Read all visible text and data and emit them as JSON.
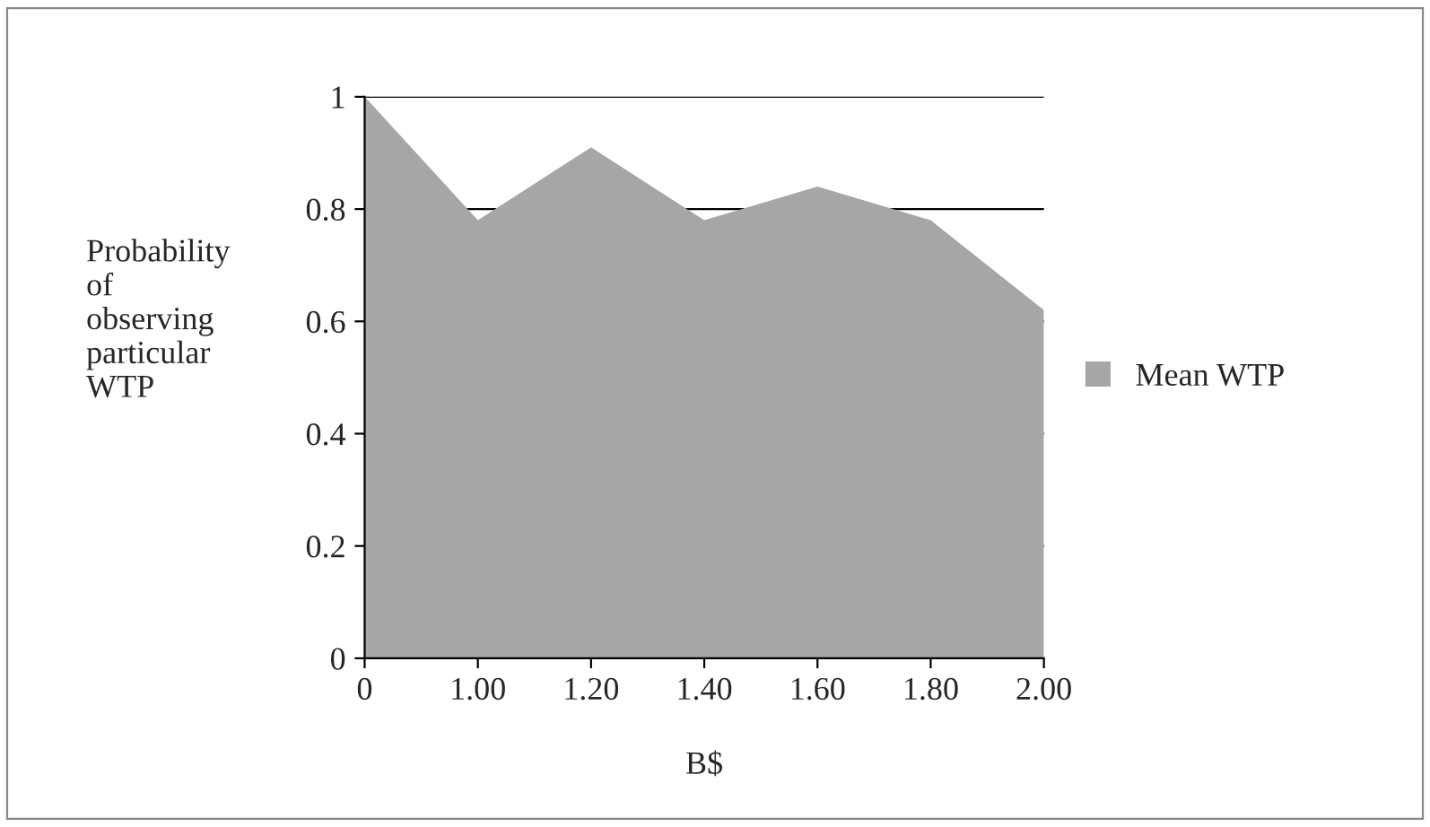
{
  "chart_data": {
    "type": "area",
    "xlabel": "B$",
    "ylabel": "Probability\nof\nobserving\nparticular\nWTP",
    "categories": [
      "0",
      "1.00",
      "1.20",
      "1.40",
      "1.60",
      "1.80",
      "2.00"
    ],
    "series": [
      {
        "name": "Mean WTP",
        "color": "#a6a6a6",
        "values": [
          1.0,
          0.78,
          0.91,
          0.78,
          0.84,
          0.78,
          0.62
        ]
      }
    ],
    "ylim": [
      0,
      1
    ],
    "yticks": [
      0,
      0.2,
      0.4,
      0.6,
      0.8,
      1
    ],
    "grid": "y",
    "legend": "right"
  }
}
